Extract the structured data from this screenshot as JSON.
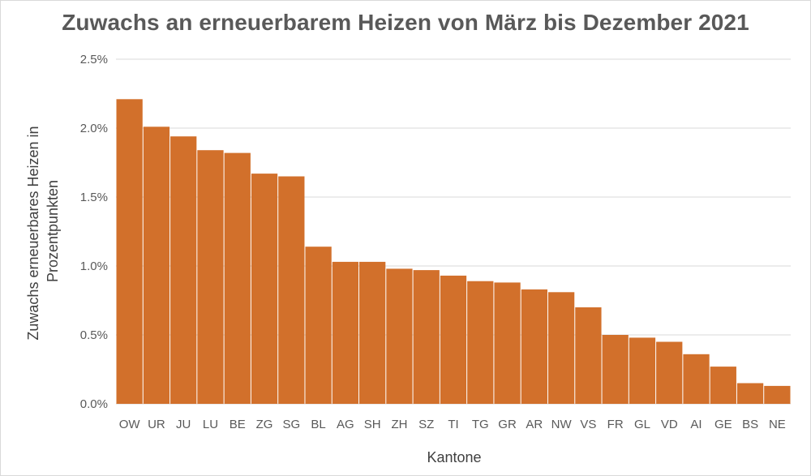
{
  "chart_data": {
    "type": "bar",
    "title": "Zuwachs an erneuerbarem Heizen von März bis Dezember 2021",
    "xlabel": "Kantone",
    "ylabel_lines": [
      "Zuwachs erneuerbares Heizen in",
      "Prozentpunkten"
    ],
    "categories": [
      "OW",
      "UR",
      "JU",
      "LU",
      "BE",
      "ZG",
      "SG",
      "BL",
      "AG",
      "SH",
      "ZH",
      "SZ",
      "TI",
      "TG",
      "GR",
      "AR",
      "NW",
      "VS",
      "FR",
      "GL",
      "VD",
      "AI",
      "GE",
      "BS",
      "NE"
    ],
    "values": [
      2.21,
      2.01,
      1.94,
      1.84,
      1.82,
      1.67,
      1.65,
      1.14,
      1.03,
      1.03,
      0.98,
      0.97,
      0.93,
      0.89,
      0.88,
      0.83,
      0.81,
      0.7,
      0.5,
      0.48,
      0.45,
      0.36,
      0.27,
      0.15,
      0.13
    ],
    "unit": "%",
    "ylim": [
      0,
      2.5
    ],
    "yticks": [
      "0.0%",
      "0.5%",
      "1.0%",
      "1.5%",
      "2.0%",
      "2.5%"
    ],
    "grid": true,
    "bar_color": "#d2702b",
    "grid_color": "#d9d9d9"
  }
}
